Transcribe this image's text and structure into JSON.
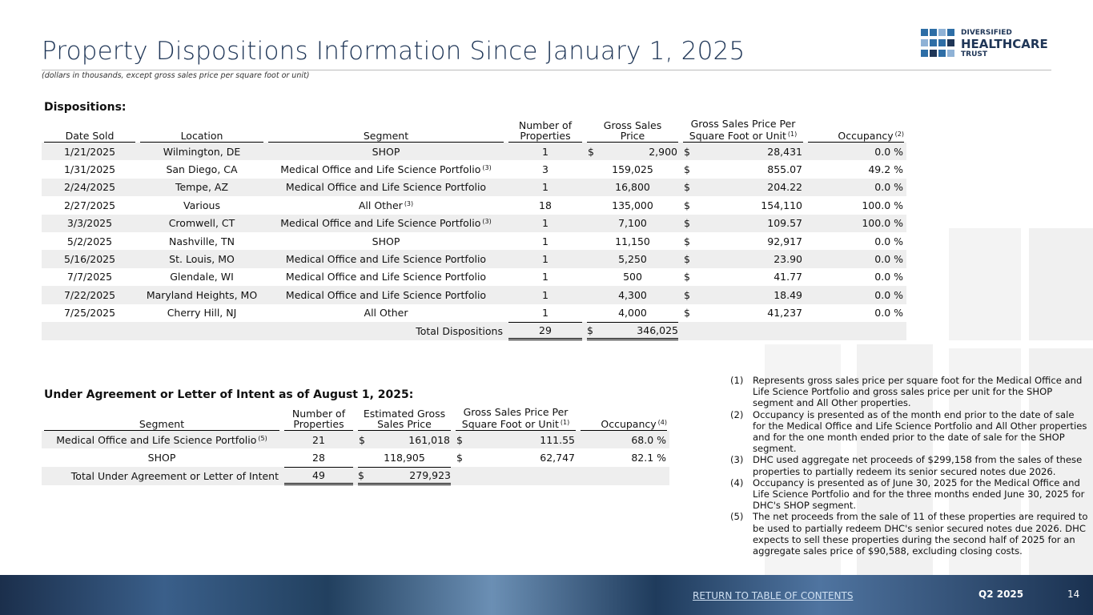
{
  "header": {
    "title": "Property Dispositions Information Since January 1, 2025",
    "subtitle": "(dollars in thousands, except gross sales price per square foot or unit)",
    "logo": [
      "DIVERSIFIED",
      "HEALTHCARE",
      "TRUST"
    ]
  },
  "dispositions": {
    "heading": "Dispositions:",
    "columns": [
      {
        "text": "Date Sold"
      },
      {
        "text": "Location"
      },
      {
        "text": "Segment"
      },
      {
        "text": "Number of\nProperties"
      },
      {
        "text": "Gross Sales\nPrice"
      },
      {
        "text": "Gross Sales Price Per\nSquare Foot or Unit",
        "note": "(1)"
      },
      {
        "text": "Occupancy",
        "note": "(2)"
      }
    ],
    "rows": [
      [
        {
          "text": "1/21/2025"
        },
        {
          "text": "Wilmington, DE"
        },
        {
          "text": "SHOP"
        },
        {
          "text": "1"
        },
        {
          "cur": "$",
          "text": "2,900"
        },
        {
          "cur": "$",
          "text": "28,431"
        },
        {
          "text": "0.0 %"
        }
      ],
      [
        {
          "text": "1/31/2025"
        },
        {
          "text": "San Diego, CA"
        },
        {
          "text": "Medical Office and Life Science Portfolio",
          "note": "(3)"
        },
        {
          "text": "3"
        },
        {
          "text": "159,025"
        },
        {
          "cur": "$",
          "text": "855.07"
        },
        {
          "text": "49.2 %"
        }
      ],
      [
        {
          "text": "2/24/2025"
        },
        {
          "text": "Tempe, AZ"
        },
        {
          "text": "Medical Office and Life Science Portfolio"
        },
        {
          "text": "1"
        },
        {
          "text": "16,800"
        },
        {
          "cur": "$",
          "text": "204.22"
        },
        {
          "text": "0.0 %"
        }
      ],
      [
        {
          "text": "2/27/2025"
        },
        {
          "text": "Various"
        },
        {
          "text": "All Other",
          "note": "(3)"
        },
        {
          "text": "18"
        },
        {
          "text": "135,000"
        },
        {
          "cur": "$",
          "text": "154,110"
        },
        {
          "text": "100.0 %"
        }
      ],
      [
        {
          "text": "3/3/2025"
        },
        {
          "text": "Cromwell, CT"
        },
        {
          "text": "Medical Office and Life Science Portfolio",
          "note": "(3)"
        },
        {
          "text": "1"
        },
        {
          "text": "7,100"
        },
        {
          "cur": "$",
          "text": "109.57"
        },
        {
          "text": "100.0 %"
        }
      ],
      [
        {
          "text": "5/2/2025"
        },
        {
          "text": "Nashville, TN"
        },
        {
          "text": "SHOP"
        },
        {
          "text": "1"
        },
        {
          "text": "11,150"
        },
        {
          "cur": "$",
          "text": "92,917"
        },
        {
          "text": "0.0 %"
        }
      ],
      [
        {
          "text": "5/16/2025"
        },
        {
          "text": "St. Louis, MO"
        },
        {
          "text": "Medical Office and Life Science Portfolio"
        },
        {
          "text": "1"
        },
        {
          "text": "5,250"
        },
        {
          "cur": "$",
          "text": "23.90"
        },
        {
          "text": "0.0 %"
        }
      ],
      [
        {
          "text": "7/7/2025"
        },
        {
          "text": "Glendale, WI"
        },
        {
          "text": "Medical Office and Life Science Portfolio"
        },
        {
          "text": "1"
        },
        {
          "text": "500"
        },
        {
          "cur": "$",
          "text": "41.77"
        },
        {
          "text": "0.0 %"
        }
      ],
      [
        {
          "text": "7/22/2025"
        },
        {
          "text": "Maryland Heights, MO"
        },
        {
          "text": "Medical Office and Life Science Portfolio"
        },
        {
          "text": "1"
        },
        {
          "text": "4,300"
        },
        {
          "cur": "$",
          "text": "18.49"
        },
        {
          "text": "0.0 %"
        }
      ],
      [
        {
          "text": "7/25/2025"
        },
        {
          "text": "Cherry Hill, NJ"
        },
        {
          "text": "All Other"
        },
        {
          "text": "1"
        },
        {
          "text": "4,000"
        },
        {
          "cur": "$",
          "text": "41,237"
        },
        {
          "text": "0.0 %"
        }
      ]
    ],
    "total": {
      "label": "Total Dispositions",
      "properties": {
        "text": "29"
      },
      "price": {
        "cur": "$",
        "text": "346,025"
      }
    }
  },
  "agreements": {
    "heading": "Under Agreement or Letter of Intent as of August 1, 2025:",
    "columns": [
      {
        "text": "Segment"
      },
      {
        "text": "Number of\nProperties"
      },
      {
        "text": "Estimated Gross\nSales Price"
      },
      {
        "text": "Gross Sales Price Per\nSquare Foot or Unit",
        "note": "(1)"
      },
      {
        "text": "Occupancy",
        "note": "(4)"
      }
    ],
    "rows": [
      [
        {
          "text": "Medical Office and Life Science Portfolio",
          "note": "(5)"
        },
        {
          "text": "21"
        },
        {
          "cur": "$",
          "text": "161,018"
        },
        {
          "cur": "$",
          "text": "111.55"
        },
        {
          "text": "68.0 %"
        }
      ],
      [
        {
          "text": "SHOP"
        },
        {
          "text": "28"
        },
        {
          "text": "118,905"
        },
        {
          "cur": "$",
          "text": "62,747"
        },
        {
          "text": "82.1 %"
        }
      ]
    ],
    "total": {
      "label": "Total Under Agreement or Letter of Intent",
      "properties": {
        "text": "49"
      },
      "price": {
        "cur": "$",
        "text": "279,923"
      }
    }
  },
  "footnotes": [
    {
      "num": "(1)",
      "text": "Represents gross sales price per square foot for the Medical Office and Life Science Portfolio and gross sales price per unit for the SHOP segment and All Other properties."
    },
    {
      "num": "(2)",
      "text": "Occupancy is presented as of the month end prior to the date of sale for the Medical Office and Life Science Portfolio and All Other properties and for the one month ended prior to the date of sale for the SHOP segment."
    },
    {
      "num": "(3)",
      "text": "DHC used aggregate net proceeds of $299,158 from the sales of these properties to partially redeem its senior secured notes due 2026."
    },
    {
      "num": "(4)",
      "text": "Occupancy is presented as of June 30, 2025 for the Medical Office and Life Science Portfolio and for the three months ended June 30, 2025 for DHC's SHOP segment."
    },
    {
      "num": "(5)",
      "text": "The net proceeds from the sale of 11 of these properties are required to be used to partially redeem DHC's senior secured notes due 2026. DHC expects to sell these properties during the second half of 2025 for an aggregate sales price of $90,588, excluding closing costs."
    }
  ],
  "footer": {
    "link": "RETURN TO TABLE OF CONTENTS",
    "period": "Q2 2025",
    "page": "14"
  }
}
